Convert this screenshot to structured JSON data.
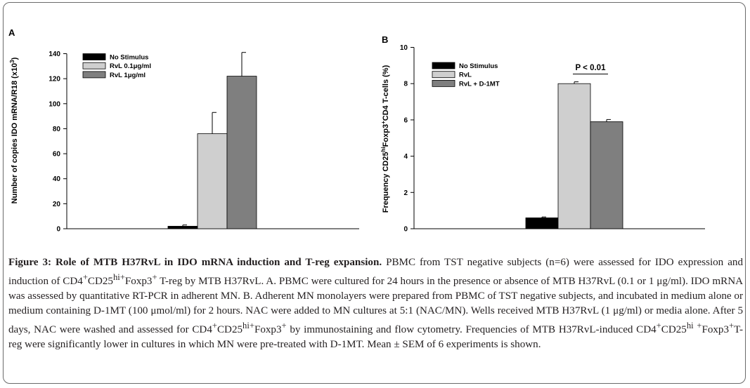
{
  "colors": {
    "black": "#000000",
    "light_gray": "#cfcfcf",
    "mid_gray": "#7f7f7f"
  },
  "chart_data": [
    {
      "type": "bar",
      "panel": "A",
      "ylabel_main": "Number of copies IDO mRNA/R18 (x10",
      "ylabel_sup": "3",
      "ylabel_end": ")",
      "ylim": [
        0,
        140
      ],
      "yticks": [
        0,
        20,
        40,
        60,
        80,
        100,
        120,
        140
      ],
      "legend": [
        "No Stimulus",
        "RvL 0.1μg/ml",
        "RvL 1μg/ml"
      ],
      "legend_position": "top-left",
      "series": [
        {
          "name": "No Stimulus",
          "value": 2,
          "error": 1
        },
        {
          "name": "RvL 0.1μg/ml",
          "value": 76,
          "error": 17
        },
        {
          "name": "RvL 1μg/ml",
          "value": 122,
          "error": 19
        }
      ]
    },
    {
      "type": "bar",
      "panel": "B",
      "ylabel_parts": [
        "Frequency CD25",
        "hi",
        "Foxp3",
        "+",
        "CD4 T-cells (%)"
      ],
      "ylim": [
        0,
        10
      ],
      "yticks": [
        0,
        2,
        4,
        6,
        8,
        10
      ],
      "legend": [
        "No Stimulus",
        "RvL",
        "RvL + D-1MT"
      ],
      "legend_position": "top-left",
      "annotation": "P < 0.01",
      "series": [
        {
          "name": "No Stimulus",
          "value": 0.6,
          "error": 0.05
        },
        {
          "name": "RvL",
          "value": 8.0,
          "error": 0.1
        },
        {
          "name": "RvL + D-1MT",
          "value": 5.9,
          "error": 0.12
        }
      ]
    }
  ],
  "caption": {
    "title": "Figure 3: Role of MTB H37RvL in IDO mRNA induction and T-reg expansion.",
    "t1": " PBMC from TST negative subjects (n=6) were assessed for IDO expression and induction of CD4",
    "t2": "+",
    "t3": "CD25",
    "t4": "hi+",
    "t5": "Foxp3",
    "t6": "+",
    "t7": " T-reg by MTB H37RvL. A. PBMC were cultured for 24 hours in the presence or absence of MTB H37RvL (0.1 or 1 μg/ml). IDO mRNA was assessed by quantitative RT-PCR in adherent MN. B. Adherent MN monolayers were prepared from PBMC of TST negative subjects, and incubated in medium alone or medium containing D-1MT (100 μmol/ml) for 2 hours. NAC were added to MN cultures at 5:1 (NAC/MN). Wells received MTB H37RvL (1 μg/ml) or media alone. After 5 days, NAC were washed and assessed for CD4",
    "t8": "+",
    "t9": "CD25",
    "t10": "hi+",
    "t11": "Foxp3",
    "t12": "+",
    "t13": " by immunostaining and flow cytometry. Frequencies of MTB H37RvL-induced CD4",
    "t14": "+",
    "t15": "CD25",
    "t16": "hi",
    "t17": " ",
    "t18": "+",
    "t19": "Foxp3",
    "t20": "+",
    "t21": "T-reg were significantly lower in cultures in which MN were pre-treated with D-1MT. Mean ± SEM of 6 experiments is shown."
  }
}
